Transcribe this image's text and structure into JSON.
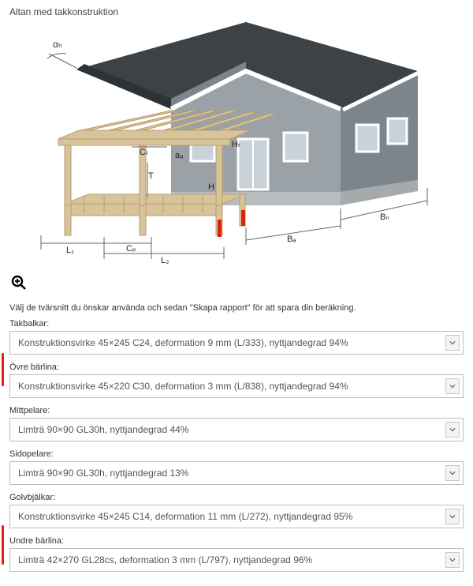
{
  "title": "Altan med takkonstruktion",
  "zoom_icon_label": "zoom",
  "instruction": "Välj de tvärsnitt du önskar använda och sedan \"Skapa rapport\" för att spara din beräkning.",
  "fields": [
    {
      "label": "Takbalkar:",
      "value": "Konstruktionsvirke 45×245 C24, deformation 9 mm (L/333), nyttjandegrad 94%",
      "highlight": false
    },
    {
      "label": "Övre bärlina:",
      "value": "Konstruktionsvirke 45×220 C30, deformation 3 mm (L/838), nyttjandegrad 94%",
      "highlight": true
    },
    {
      "label": "Mittpelare:",
      "value": "Limträ 90×90 GL30h, nyttjandegrad 44%",
      "highlight": false
    },
    {
      "label": "Sidopelare:",
      "value": "Limträ 90×90 GL30h, nyttjandegrad 13%",
      "highlight": false
    },
    {
      "label": "Golvbjälkar:",
      "value": "Konstruktionsvirke 45×245 C14, deformation 11 mm (L/272), nyttjandegrad 95%",
      "highlight": false
    },
    {
      "label": "Undre bärlina:",
      "value": "Limträ 42×270 GL28cs, deformation 3 mm (L/797), nyttjandegrad 96%",
      "highlight": true
    }
  ],
  "diagram": {
    "roof_color": "#3c4246",
    "wall_color_light": "#9aa1a7",
    "wall_color_dark": "#7d858c",
    "foundation_color": "#b9bcbf",
    "wood_color": "#d8c49a",
    "wood_edge": "#b79e6e",
    "dim_color": "#666",
    "accent_red": "#d21",
    "trim_color": "#ffffff",
    "window_color": "#c9d2d8",
    "labels": {
      "alpha_h": "αₕ",
      "Ct": "Cₜ",
      "aa": "aₐ",
      "Ht": "Hₜ",
      "T": "T",
      "H": "H",
      "Cp": "Cₚ",
      "L1": "L₁",
      "L2": "L₂",
      "Ba": "Bₐ",
      "Bn": "Bₙ"
    }
  }
}
